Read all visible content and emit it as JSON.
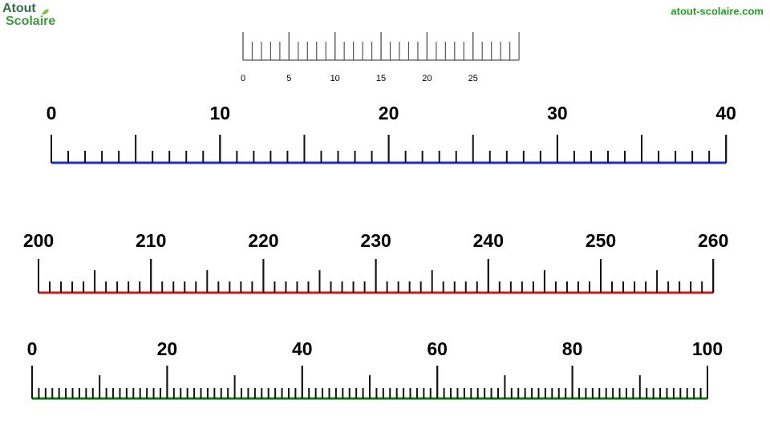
{
  "header": {
    "logo": [
      "Atout",
      "Scolaire"
    ],
    "site": "atout-scolaire.com"
  },
  "rulers": [
    {
      "labels": [
        0,
        5,
        10,
        15,
        20,
        25
      ],
      "color": "#555555"
    },
    {
      "labels": [
        0,
        10,
        20,
        30,
        40
      ],
      "color": "#1f2fc0"
    },
    {
      "labels": [
        200,
        210,
        220,
        230,
        240,
        250,
        260
      ],
      "color": "#d01818"
    },
    {
      "labels": [
        0,
        20,
        40,
        60,
        80,
        100
      ],
      "color": "#1a7a1a"
    }
  ]
}
